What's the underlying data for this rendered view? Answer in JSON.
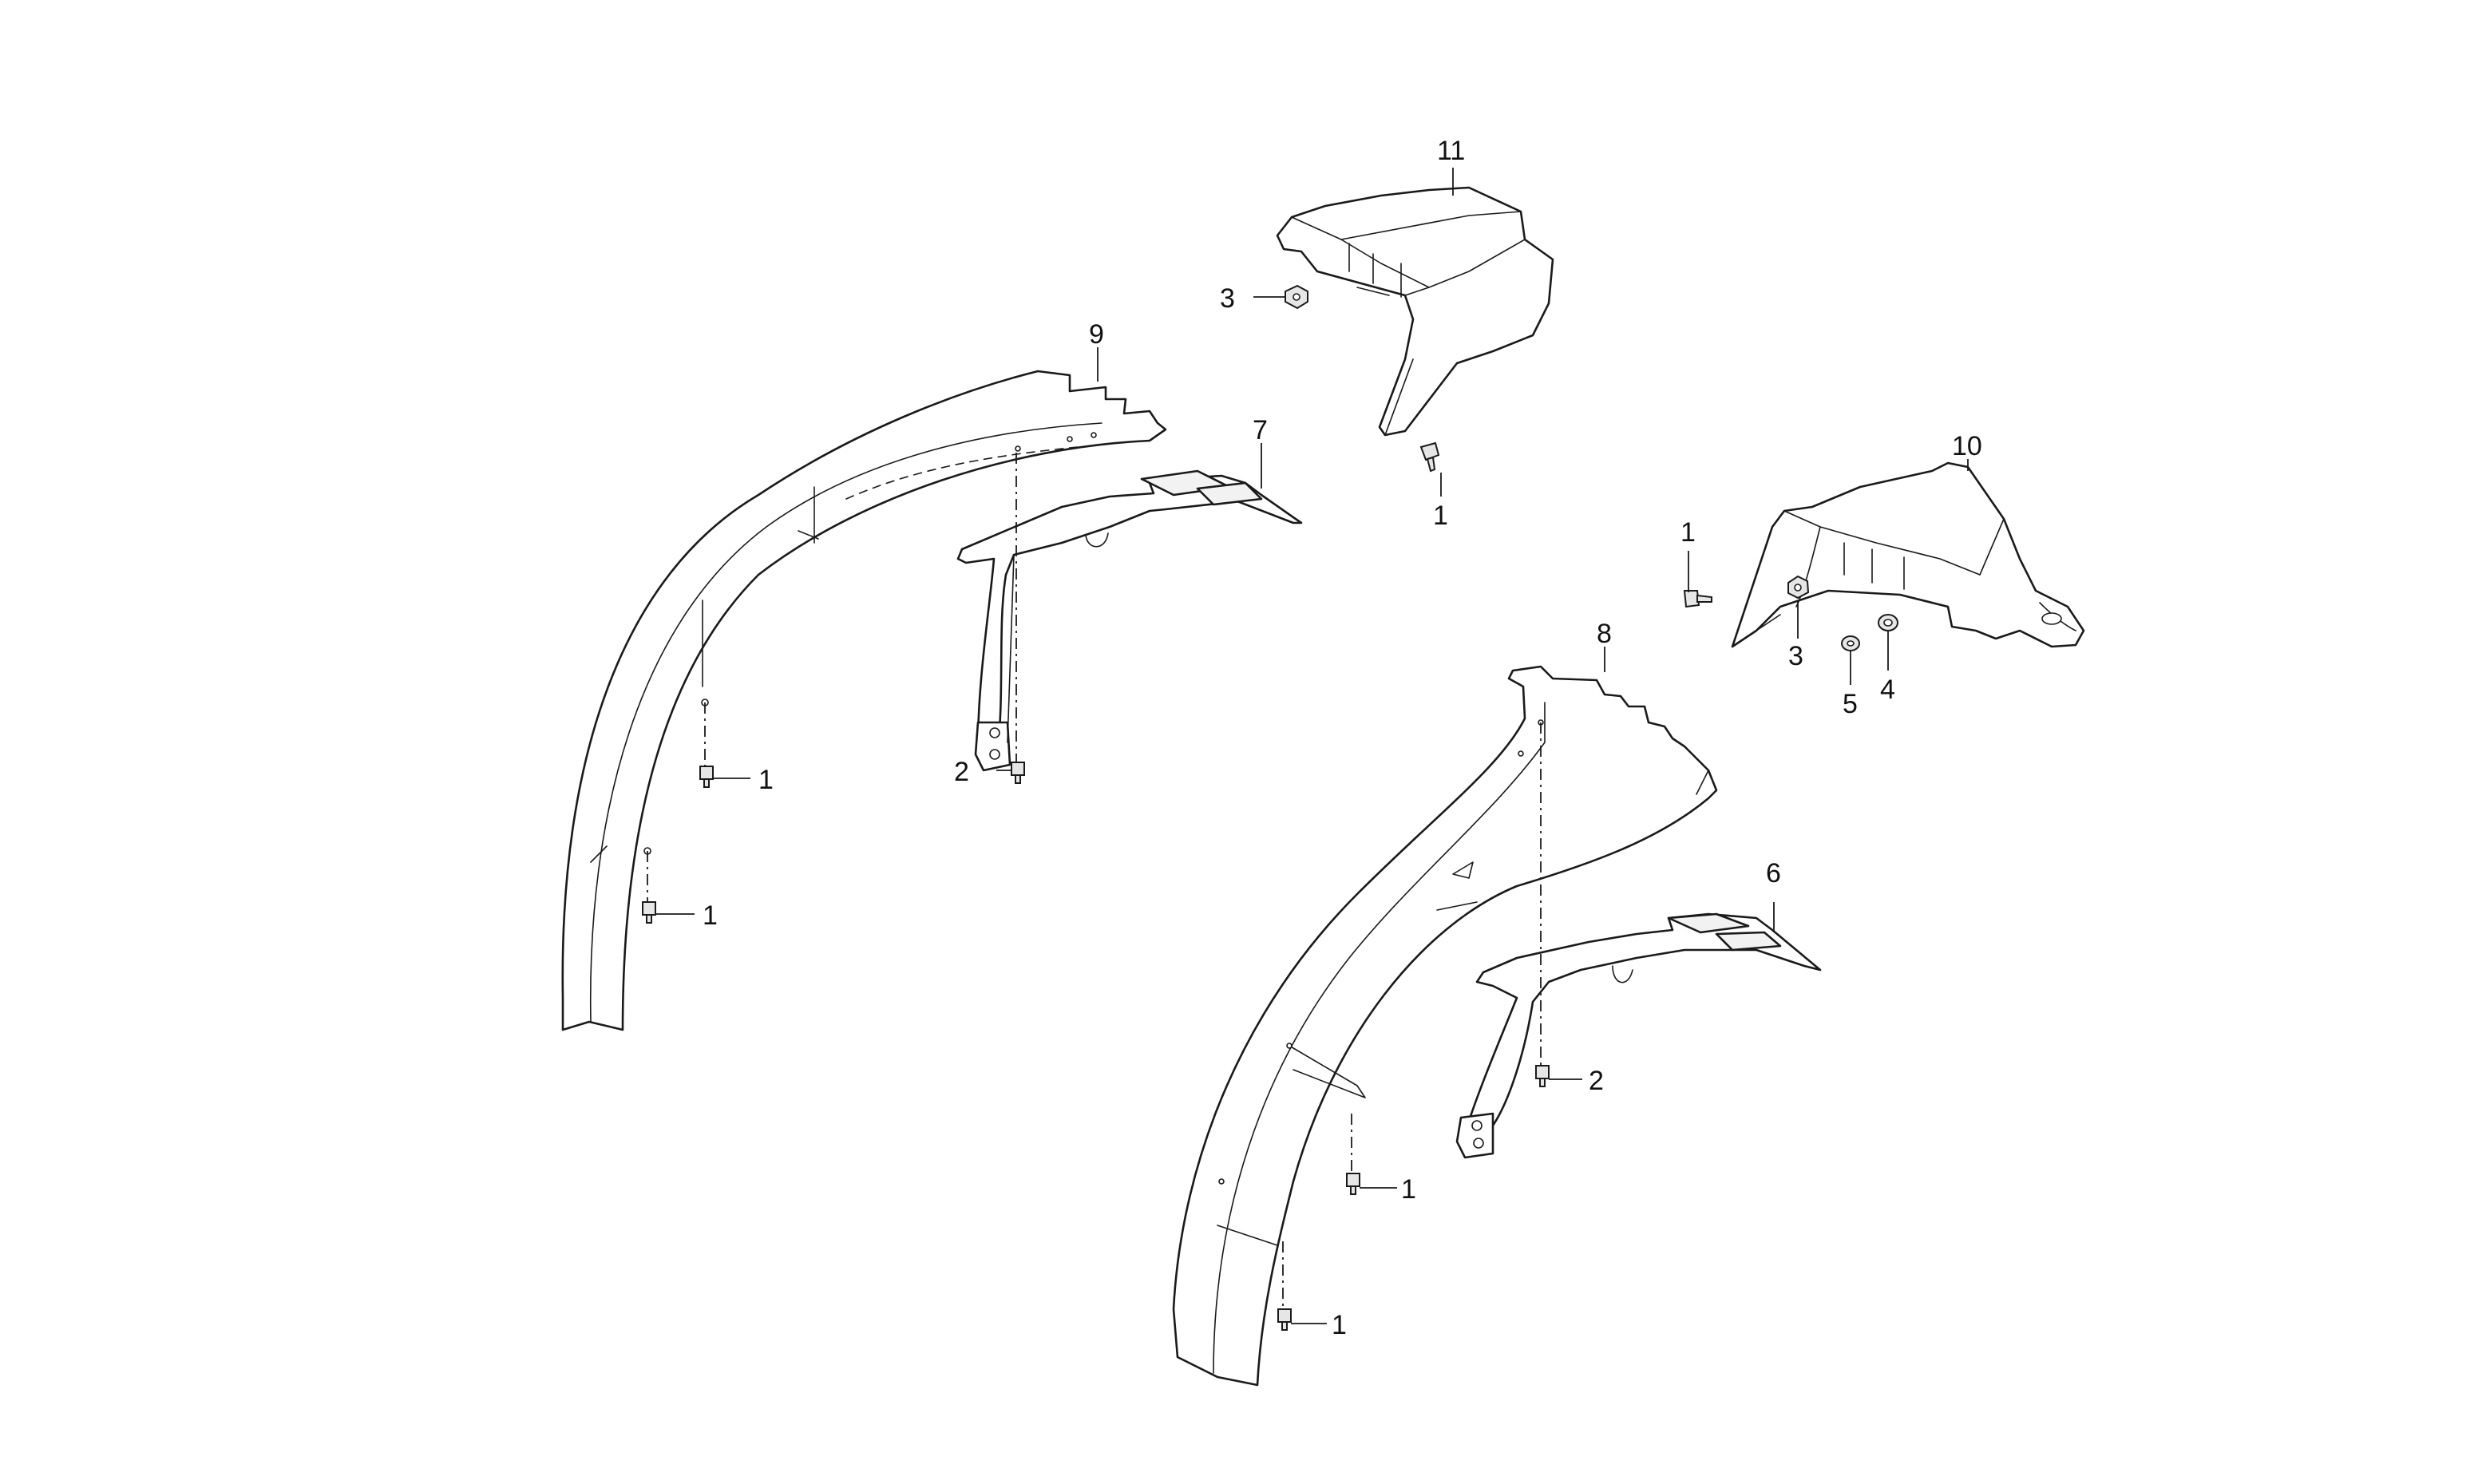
{
  "diagram": {
    "callouts": [
      {
        "id": "c11",
        "label": "11"
      },
      {
        "id": "c3a",
        "label": "3"
      },
      {
        "id": "c9",
        "label": "9"
      },
      {
        "id": "c7",
        "label": "7"
      },
      {
        "id": "c1a",
        "label": "1"
      },
      {
        "id": "c10",
        "label": "10"
      },
      {
        "id": "c1b",
        "label": "1"
      },
      {
        "id": "c3b",
        "label": "3"
      },
      {
        "id": "c5",
        "label": "5"
      },
      {
        "id": "c4",
        "label": "4"
      },
      {
        "id": "c8",
        "label": "8"
      },
      {
        "id": "c1c",
        "label": "1"
      },
      {
        "id": "c2a",
        "label": "2"
      },
      {
        "id": "c1d",
        "label": "1"
      },
      {
        "id": "c6",
        "label": "6"
      },
      {
        "id": "c2b",
        "label": "2"
      },
      {
        "id": "c1e",
        "label": "1"
      },
      {
        "id": "c1f",
        "label": "1"
      }
    ]
  }
}
